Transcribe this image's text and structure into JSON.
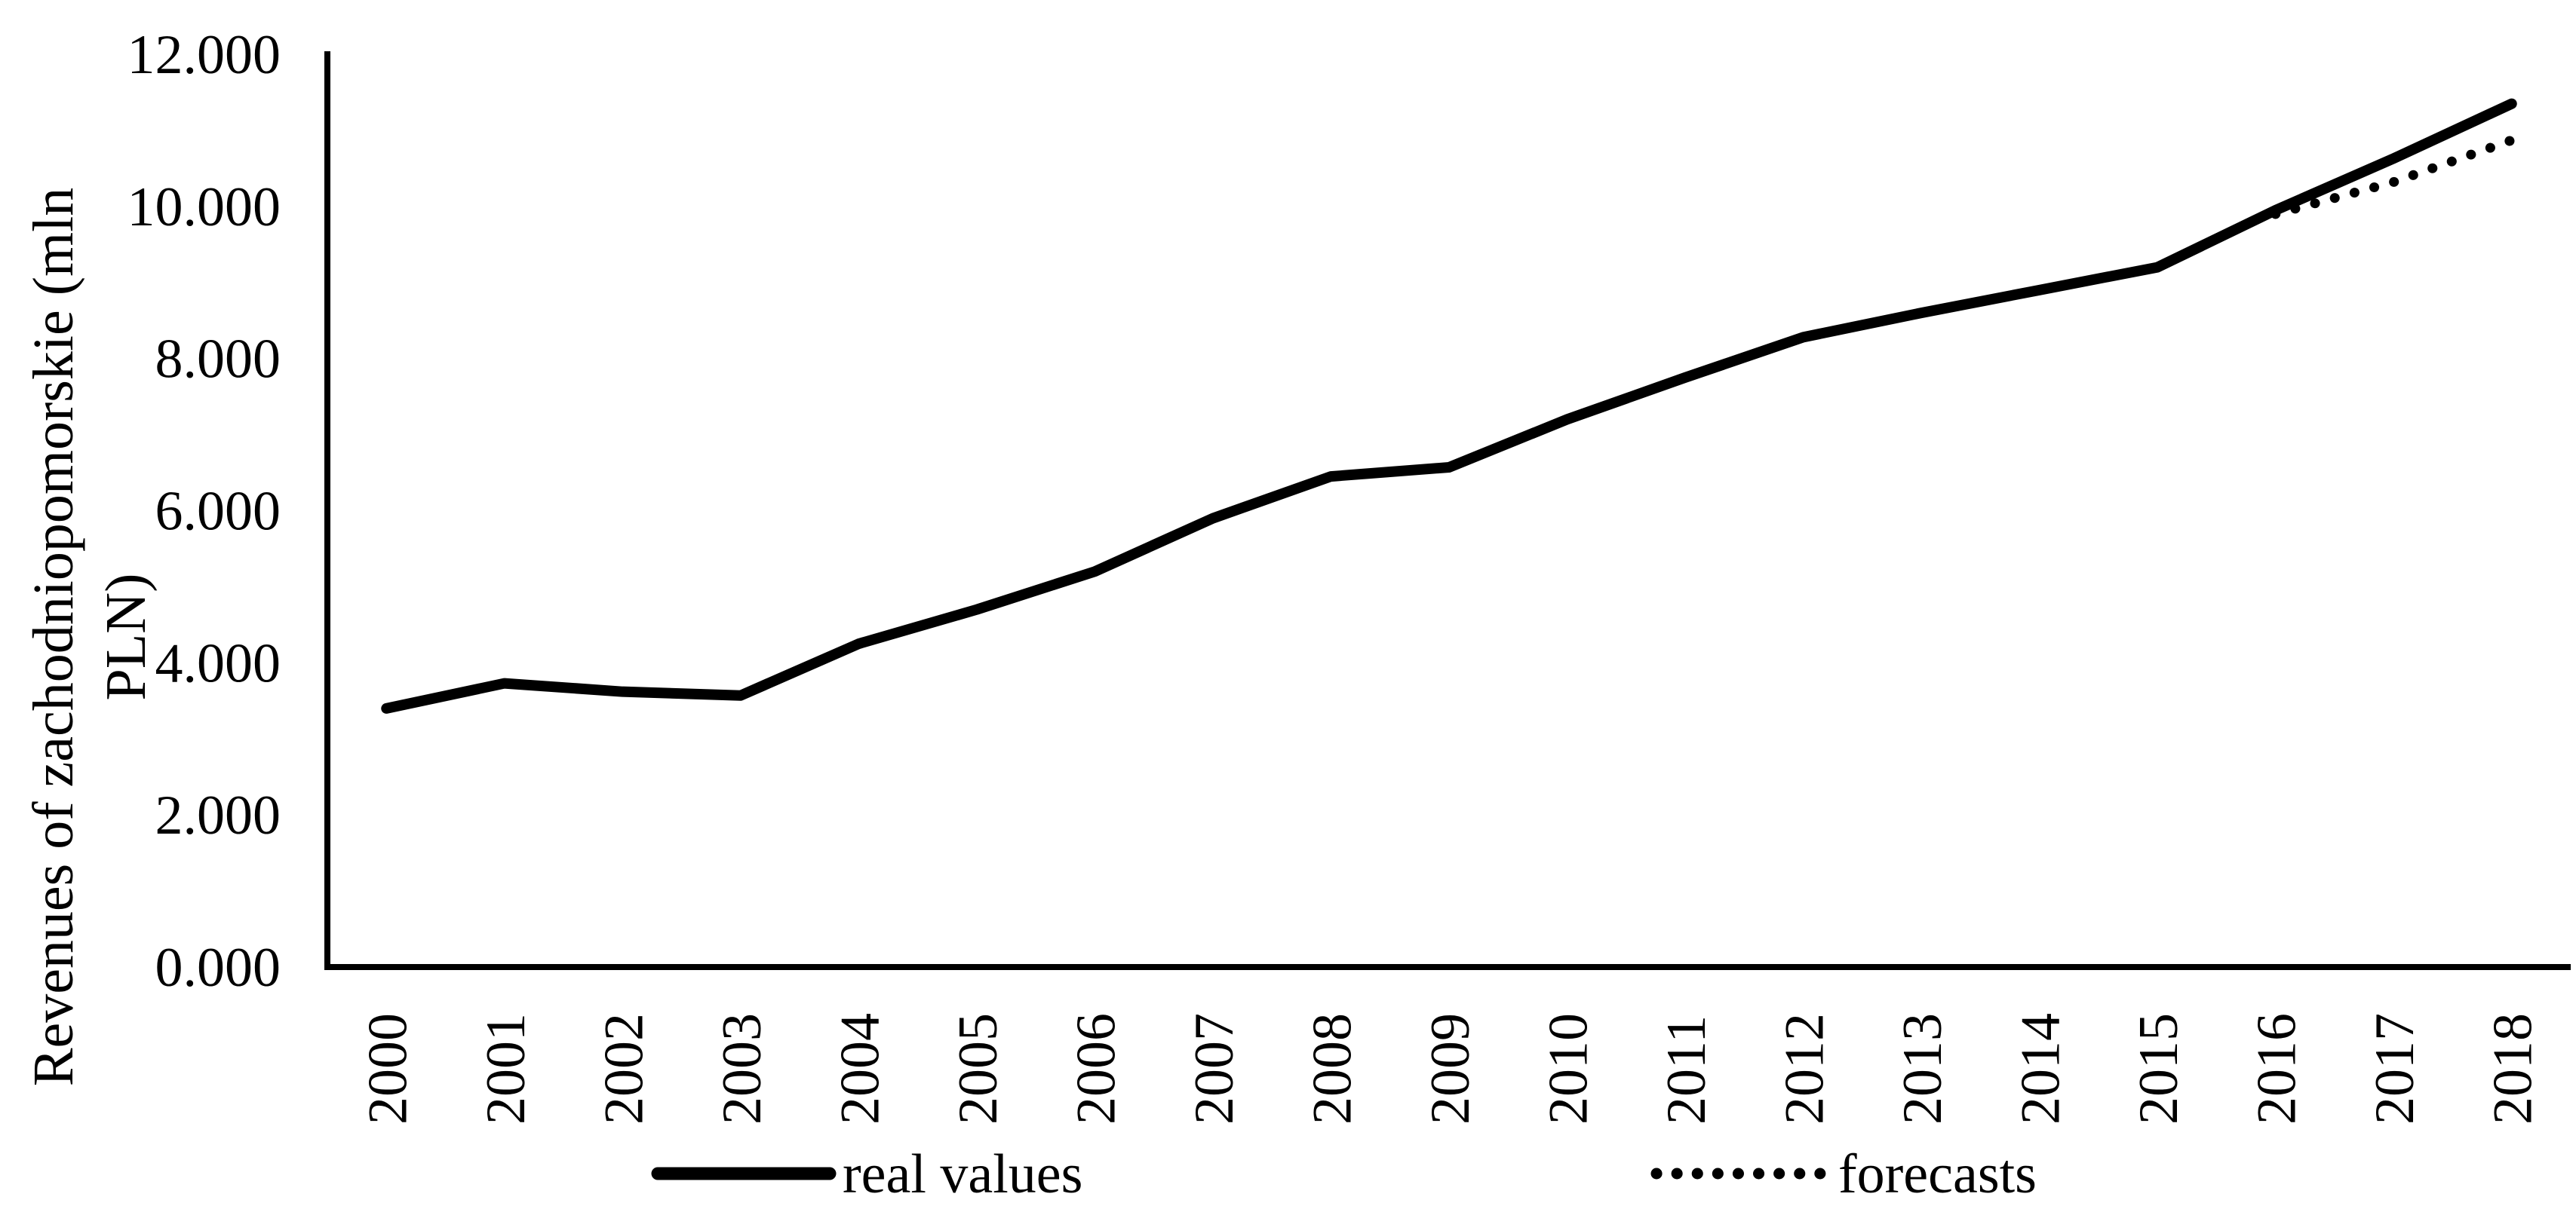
{
  "page": {
    "background_color": "#ffffff",
    "ink_color": "#000000"
  },
  "chart_data": {
    "type": "line",
    "title": "",
    "xlabel": "",
    "ylabel": "Revenues of zachodniopomorskie (mln PLN)",
    "ylabel_lines": [
      "Revenues of zachodniopomorskie (mln",
      "PLN)"
    ],
    "units": "mln PLN",
    "x_categories": [
      "2000",
      "2001",
      "2002",
      "2003",
      "2004",
      "2005",
      "2006",
      "2007",
      "2008",
      "2009",
      "2010",
      "2011",
      "2012",
      "2013",
      "2014",
      "2015",
      "2016",
      "2017",
      "2018"
    ],
    "y_tick_labels": [
      "0.000",
      "2.000",
      "4.000",
      "6.000",
      "8.000",
      "10.000",
      "12.000"
    ],
    "ylim": [
      0,
      12000
    ],
    "y_tick_step": 2000,
    "grid": false,
    "legend_position": "bottom-center",
    "series": [
      {
        "name": "real values",
        "line_style": "solid",
        "color": "#000000",
        "values": [
          3400,
          3730,
          3620,
          3570,
          4250,
          4700,
          5200,
          5900,
          6450,
          6570,
          7200,
          7750,
          8280,
          8600,
          8900,
          9200,
          9950,
          10630,
          11350
        ]
      },
      {
        "name": "forecasts",
        "line_style": "dotted",
        "color": "#000000",
        "values": [
          null,
          null,
          null,
          null,
          null,
          null,
          null,
          null,
          null,
          null,
          null,
          null,
          null,
          null,
          null,
          null,
          9900,
          10320,
          10870
        ]
      }
    ]
  }
}
